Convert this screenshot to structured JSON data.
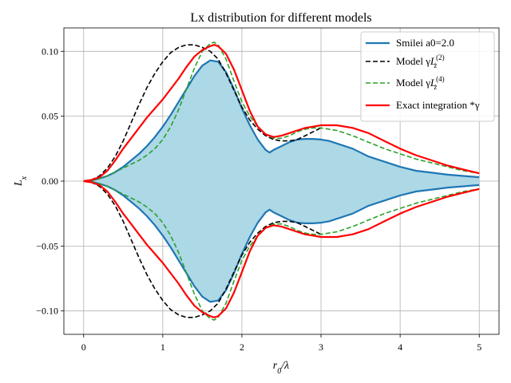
{
  "chart_data": {
    "type": "line",
    "title": "Lx distribution for different models",
    "xlabel": "r₀/λ",
    "ylabel": "Lₓ",
    "xlim": [
      -0.25,
      5.25
    ],
    "ylim": [
      -0.118,
      0.118
    ],
    "xticks": [
      0,
      1,
      2,
      3,
      4,
      5
    ],
    "yticks": [
      -0.1,
      -0.05,
      0.0,
      0.05,
      0.1
    ],
    "xtick_labels": [
      "0",
      "1",
      "2",
      "3",
      "4",
      "5"
    ],
    "ytick_labels": [
      "−0.10",
      "−0.05",
      "0.00",
      "0.05",
      "0.10"
    ],
    "grid": true,
    "legend_position": "top-right",
    "fill_color": "#add8e6",
    "symmetric_about_zero": true,
    "series": [
      {
        "name": "Smilei a0=2.0",
        "color": "#1f77b4",
        "style": "solid",
        "filled": true,
        "x": [
          0,
          0.1,
          0.2,
          0.3,
          0.4,
          0.5,
          0.6,
          0.7,
          0.8,
          0.9,
          1.0,
          1.1,
          1.2,
          1.3,
          1.4,
          1.5,
          1.6,
          1.7,
          1.8,
          1.9,
          2.0,
          2.1,
          2.2,
          2.3,
          2.35,
          2.4,
          2.5,
          2.6,
          2.7,
          2.8,
          2.9,
          3.0,
          3.1,
          3.2,
          3.3,
          3.4,
          3.5,
          3.6,
          3.8,
          4.0,
          4.2,
          4.4,
          4.6,
          4.8,
          5.0
        ],
        "y": [
          0,
          0.0005,
          0.002,
          0.004,
          0.007,
          0.011,
          0.016,
          0.021,
          0.027,
          0.034,
          0.042,
          0.051,
          0.061,
          0.071,
          0.081,
          0.089,
          0.093,
          0.092,
          0.084,
          0.071,
          0.056,
          0.043,
          0.032,
          0.024,
          0.022,
          0.024,
          0.027,
          0.03,
          0.032,
          0.0325,
          0.0325,
          0.032,
          0.031,
          0.029,
          0.027,
          0.025,
          0.022,
          0.019,
          0.015,
          0.011,
          0.008,
          0.0065,
          0.005,
          0.004,
          0.003
        ]
      },
      {
        "name": "Model γL_z^(2)",
        "color": "#000000",
        "style": "dashed",
        "filled": false,
        "x": [
          0,
          0.1,
          0.2,
          0.3,
          0.4,
          0.5,
          0.6,
          0.7,
          0.8,
          0.9,
          1.0,
          1.1,
          1.2,
          1.3,
          1.4,
          1.5,
          1.6,
          1.7,
          1.8,
          1.9,
          2.0,
          2.1,
          2.2,
          2.3,
          2.4,
          2.5,
          2.6,
          2.7,
          2.8,
          2.9,
          3.0
        ],
        "y": [
          0,
          0.001,
          0.004,
          0.01,
          0.019,
          0.031,
          0.045,
          0.059,
          0.072,
          0.083,
          0.092,
          0.099,
          0.103,
          0.105,
          0.105,
          0.103,
          0.1,
          0.094,
          0.083,
          0.07,
          0.057,
          0.047,
          0.04,
          0.035,
          0.032,
          0.031,
          0.031,
          0.032,
          0.035,
          0.038,
          0.041
        ]
      },
      {
        "name": "Model γL_z^(4)",
        "color": "#2ca02c",
        "style": "dashed",
        "filled": false,
        "x": [
          0,
          0.1,
          0.2,
          0.3,
          0.4,
          0.5,
          0.6,
          0.7,
          0.8,
          0.9,
          1.0,
          1.1,
          1.2,
          1.3,
          1.4,
          1.5,
          1.6,
          1.65,
          1.7,
          1.8,
          1.9,
          2.0,
          2.1,
          2.2,
          2.3,
          2.4,
          2.5,
          2.6,
          2.7,
          2.8,
          2.9,
          3.0,
          3.2,
          3.4,
          3.6,
          3.8,
          4.0,
          4.2,
          4.4,
          4.6,
          4.8,
          5.0
        ],
        "y": [
          0,
          0.0005,
          0.002,
          0.004,
          0.007,
          0.01,
          0.013,
          0.016,
          0.02,
          0.025,
          0.032,
          0.042,
          0.055,
          0.071,
          0.087,
          0.1,
          0.106,
          0.107,
          0.105,
          0.094,
          0.077,
          0.061,
          0.05,
          0.042,
          0.036,
          0.033,
          0.033,
          0.035,
          0.038,
          0.04,
          0.041,
          0.041,
          0.039,
          0.035,
          0.03,
          0.025,
          0.021,
          0.017,
          0.014,
          0.011,
          0.008,
          0.006
        ]
      },
      {
        "name": "Exact integration *γ",
        "color": "#ff0000",
        "style": "solid",
        "filled": false,
        "x": [
          0,
          0.1,
          0.2,
          0.3,
          0.4,
          0.5,
          0.6,
          0.7,
          0.8,
          0.9,
          1.0,
          1.1,
          1.2,
          1.3,
          1.4,
          1.5,
          1.6,
          1.65,
          1.7,
          1.8,
          1.9,
          2.0,
          2.1,
          2.2,
          2.3,
          2.4,
          2.5,
          2.6,
          2.7,
          2.8,
          2.9,
          3.0,
          3.2,
          3.4,
          3.6,
          3.8,
          4.0,
          4.2,
          4.4,
          4.6,
          4.8,
          5.0
        ],
        "y": [
          0,
          0.001,
          0.003,
          0.008,
          0.016,
          0.025,
          0.033,
          0.041,
          0.049,
          0.056,
          0.063,
          0.071,
          0.079,
          0.088,
          0.096,
          0.101,
          0.104,
          0.105,
          0.104,
          0.098,
          0.086,
          0.07,
          0.054,
          0.042,
          0.036,
          0.034,
          0.035,
          0.037,
          0.039,
          0.041,
          0.042,
          0.043,
          0.043,
          0.041,
          0.037,
          0.031,
          0.025,
          0.02,
          0.016,
          0.012,
          0.009,
          0.006
        ]
      }
    ]
  }
}
